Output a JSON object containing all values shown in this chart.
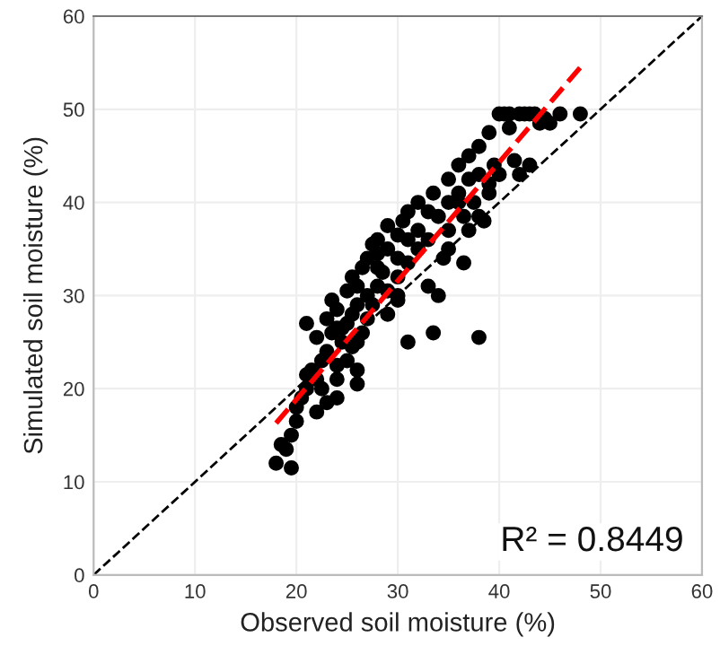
{
  "chart_data": {
    "type": "scatter",
    "xlabel": "Observed soil moisture (%)",
    "ylabel": "Simulated soil moisture (%)",
    "xlim": [
      0,
      60
    ],
    "ylim": [
      0,
      60
    ],
    "xticks": [
      0,
      10,
      20,
      30,
      40,
      50,
      60
    ],
    "yticks": [
      0,
      10,
      20,
      30,
      40,
      50,
      60
    ],
    "grid": true,
    "marker": "circle",
    "annotations": [
      "R² = 0.8449"
    ],
    "series": [
      {
        "color": "#000000",
        "x": [
          18,
          18.5,
          19,
          19.5,
          19.5,
          20,
          20,
          20.5,
          21,
          21,
          21,
          21.5,
          22,
          22,
          22,
          22.5,
          22.5,
          23,
          23,
          23,
          23.5,
          23.5,
          24,
          24,
          24,
          24,
          24.5,
          24.5,
          25,
          25,
          25,
          25.5,
          25.5,
          25.5,
          26,
          26,
          26,
          26,
          26.5,
          26.5,
          27,
          27,
          27,
          27.5,
          27.5,
          28,
          28,
          28,
          28.5,
          29,
          29,
          29,
          30,
          30,
          30,
          30.5,
          31,
          31,
          31,
          32,
          32,
          32,
          33,
          33,
          33.5,
          33.5,
          34,
          34,
          34.5,
          35,
          35,
          35,
          36,
          36,
          36.5,
          36.5,
          37,
          37,
          37.5,
          38,
          38,
          38,
          38.5,
          39,
          39,
          39,
          40,
          40,
          40.5,
          41,
          41,
          41.5,
          42,
          42,
          42.5,
          43,
          43,
          43.5,
          44,
          44.5,
          45,
          46,
          48,
          36,
          37,
          30,
          29,
          33,
          35,
          38,
          39.5,
          31,
          28,
          30,
          26,
          24
        ],
        "values": [
          12,
          14,
          13.5,
          11.5,
          15,
          16.5,
          18,
          19,
          20,
          21.5,
          27,
          22,
          17.5,
          21,
          25.5,
          20,
          23,
          18.5,
          24,
          27.5,
          29.5,
          26,
          19,
          21,
          22.5,
          28.5,
          25,
          26.5,
          23,
          27,
          30.5,
          24.5,
          28,
          32,
          20.5,
          22,
          29,
          31,
          26,
          33,
          27.5,
          30,
          34,
          29,
          35.5,
          31,
          33,
          36,
          32.5,
          28,
          35,
          37.5,
          34,
          32,
          36.5,
          38,
          25,
          33.5,
          39,
          35,
          37,
          40,
          36,
          39,
          26,
          41,
          38.5,
          30,
          34,
          37,
          40,
          42.5,
          41,
          44,
          38.5,
          33.5,
          42.5,
          45,
          40,
          25.5,
          43,
          46,
          38,
          42,
          41,
          47.5,
          43,
          49.5,
          49.5,
          49.5,
          48,
          44.5,
          49.5,
          43,
          49.5,
          49.5,
          44,
          49.5,
          48.5,
          49,
          48.5,
          49.5,
          49.5,
          40,
          37,
          30,
          30.5,
          31,
          35,
          38.5,
          44,
          36,
          34.5,
          29.5,
          25,
          26.5
        ]
      },
      {
        "type": "line",
        "color": "#ff0000",
        "line_style": "dashed",
        "marker": "none",
        "x": [
          18,
          48
        ],
        "values": [
          16.3,
          54.5
        ]
      },
      {
        "type": "line",
        "color": "#000000",
        "line_style": "dashed",
        "marker": "none",
        "x": [
          0,
          60
        ],
        "values": [
          0,
          60
        ]
      }
    ]
  }
}
